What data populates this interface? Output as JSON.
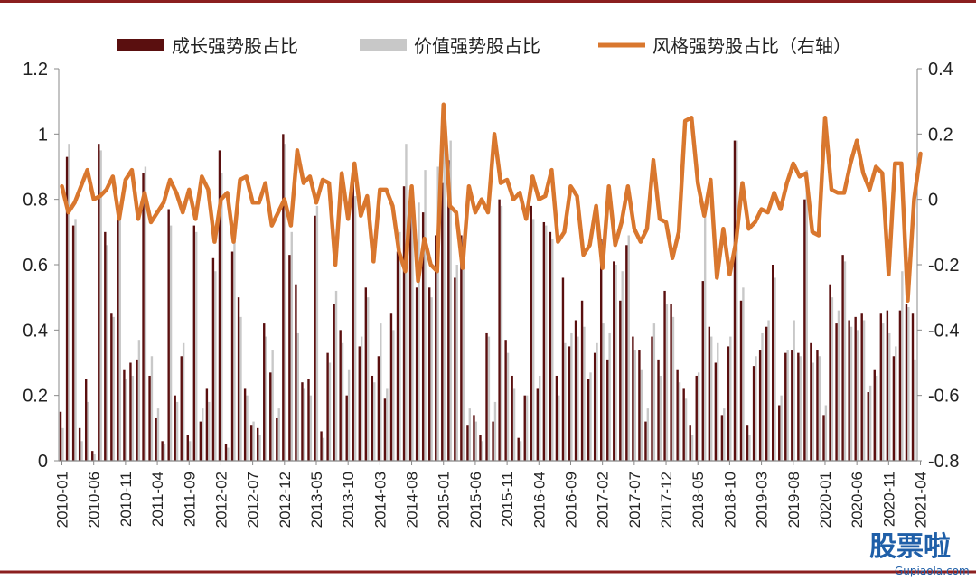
{
  "chart_data": {
    "type": "bar+line",
    "legend": {
      "growth": "成长强势股占比",
      "value": "价值强势股占比",
      "style": "风格强势股占比（右轴）"
    },
    "colors": {
      "growth": "#5a0f0f",
      "value": "#c8c8c8",
      "style": "#d9772e",
      "frame": "#8b1f1f"
    },
    "ylim_left": [
      0,
      1.2
    ],
    "ylim_right": [
      -0.8,
      0.4
    ],
    "yticks_left": [
      "0",
      "0.2",
      "0.4",
      "0.6",
      "0.8",
      "1",
      "1.2"
    ],
    "yticks_right": [
      "-0.8",
      "-0.6",
      "-0.4",
      "-0.2",
      "0",
      "0.2",
      "0.4"
    ],
    "xtick_labels": [
      "2010-01",
      "2010-06",
      "2010-11",
      "2011-04",
      "2011-09",
      "2012-02",
      "2012-07",
      "2012-12",
      "2013-05",
      "2013-10",
      "2014-03",
      "2014-08",
      "2015-01",
      "2015-06",
      "2015-11",
      "2016-04",
      "2016-09",
      "2017-02",
      "2017-07",
      "2017-12",
      "2018-05",
      "2018-10",
      "2019-03",
      "2019-08",
      "2020-01",
      "2020-06",
      "2020-11",
      "2021-04"
    ],
    "growth": [
      0.15,
      0.93,
      0.72,
      0.1,
      0.25,
      0.03,
      0.97,
      0.7,
      0.45,
      0.75,
      0.28,
      0.3,
      0.31,
      0.88,
      0.26,
      0.13,
      0.06,
      0.77,
      0.2,
      0.32,
      0.08,
      0.72,
      0.12,
      0.22,
      0.62,
      0.95,
      0.05,
      0.64,
      0.5,
      0.22,
      0.11,
      0.1,
      0.42,
      0.27,
      0.13,
      1.0,
      0.63,
      0.54,
      0.24,
      0.25,
      0.75,
      0.09,
      0.33,
      0.48,
      0.4,
      0.2,
      0.87,
      0.35,
      0.53,
      0.26,
      0.32,
      0.19,
      0.45,
      0.64,
      0.84,
      0.83,
      0.53,
      0.76,
      0.53,
      0.69,
      0.85,
      0.92,
      0.56,
      0.69,
      0.11,
      0.14,
      0.08,
      0.39,
      0.12,
      0.8,
      0.37,
      0.26,
      0.07,
      0.2,
      0.78,
      0.22,
      0.73,
      0.7,
      0.26,
      0.56,
      0.35,
      0.43,
      0.49,
      0.25,
      0.33,
      0.68,
      0.31,
      0.61,
      0.49,
      0.66,
      0.38,
      0.34,
      0.12,
      0.38,
      0.31,
      0.52,
      0.48,
      0.28,
      0.22,
      0.11,
      0.26,
      0.55,
      0.41,
      0.3,
      0.14,
      0.35,
      0.98,
      0.49,
      0.11,
      0.29,
      0.34,
      0.41,
      0.6,
      0.17,
      0.33,
      0.34,
      0.33,
      0.8,
      0.36,
      0.34,
      0.14,
      0.54,
      0.42,
      0.63,
      0.43,
      0.44,
      0.45,
      0.21,
      0.28,
      0.45,
      0.46,
      0.32,
      0.46,
      0.48,
      0.45
    ],
    "value": [
      0.1,
      0.97,
      0.74,
      0.06,
      0.18,
      0.02,
      0.95,
      0.66,
      0.44,
      0.77,
      0.25,
      0.26,
      0.37,
      0.9,
      0.32,
      0.16,
      0.05,
      0.72,
      0.18,
      0.36,
      0.06,
      0.7,
      0.16,
      0.18,
      0.58,
      0.88,
      0.04,
      0.68,
      0.44,
      0.2,
      0.12,
      0.08,
      0.38,
      0.34,
      0.16,
      0.97,
      0.7,
      0.39,
      0.22,
      0.2,
      0.78,
      0.07,
      0.3,
      0.52,
      0.36,
      0.28,
      0.81,
      0.38,
      0.5,
      0.24,
      0.42,
      0.22,
      0.4,
      0.7,
      0.97,
      0.76,
      0.79,
      0.89,
      0.5,
      0.9,
      0.98,
      0.98,
      0.6,
      0.62,
      0.16,
      0.12,
      0.06,
      0.38,
      0.18,
      0.78,
      0.33,
      0.22,
      0.06,
      0.2,
      0.74,
      0.26,
      0.72,
      0.68,
      0.2,
      0.36,
      0.39,
      0.38,
      0.41,
      0.27,
      0.36,
      0.42,
      0.39,
      0.6,
      0.58,
      0.69,
      0.34,
      0.28,
      0.16,
      0.42,
      0.26,
      0.48,
      0.44,
      0.24,
      0.19,
      0.08,
      0.27,
      0.78,
      0.38,
      0.36,
      0.16,
      0.38,
      0.98,
      0.53,
      0.08,
      0.32,
      0.39,
      0.43,
      0.56,
      0.2,
      0.34,
      0.43,
      0.32,
      0.89,
      0.3,
      0.32,
      0.17,
      0.5,
      0.46,
      0.61,
      0.41,
      0.4,
      0.43,
      0.23,
      0.26,
      0.42,
      0.39,
      0.35,
      0.58,
      0.47,
      0.31
    ],
    "style": [
      0.04,
      -0.04,
      -0.01,
      0.04,
      0.09,
      0.0,
      0.01,
      0.03,
      0.07,
      -0.06,
      0.06,
      0.09,
      -0.06,
      0.02,
      -0.07,
      -0.04,
      -0.01,
      0.06,
      0.02,
      -0.04,
      0.03,
      -0.06,
      0.07,
      0.03,
      -0.13,
      0.0,
      0.02,
      -0.13,
      0.06,
      0.07,
      -0.01,
      -0.01,
      0.05,
      -0.08,
      -0.04,
      0.0,
      -0.08,
      0.15,
      0.05,
      0.07,
      -0.01,
      0.06,
      0.05,
      -0.2,
      0.08,
      -0.06,
      0.11,
      -0.05,
      0.01,
      -0.19,
      0.03,
      0.03,
      -0.02,
      -0.16,
      -0.22,
      0.04,
      -0.25,
      -0.12,
      -0.2,
      -0.22,
      0.29,
      -0.02,
      -0.04,
      -0.21,
      0.04,
      -0.04,
      0.0,
      -0.04,
      0.2,
      0.05,
      0.06,
      0.0,
      0.02,
      -0.06,
      0.07,
      0.0,
      0.01,
      0.09,
      -0.13,
      -0.1,
      0.04,
      0.01,
      -0.17,
      -0.14,
      -0.02,
      -0.21,
      0.04,
      -0.14,
      -0.07,
      0.04,
      -0.09,
      -0.13,
      -0.09,
      0.12,
      -0.06,
      -0.07,
      -0.18,
      -0.1,
      0.24,
      0.25,
      0.05,
      -0.05,
      0.06,
      -0.24,
      -0.09,
      -0.23,
      -0.13,
      0.05,
      -0.09,
      -0.07,
      -0.03,
      -0.04,
      0.02,
      -0.03,
      0.05,
      0.11,
      0.07,
      0.08,
      -0.1,
      -0.11,
      0.25,
      0.03,
      0.02,
      0.02,
      0.11,
      0.18,
      0.08,
      0.03,
      0.1,
      0.08,
      -0.23,
      0.11,
      0.11,
      -0.31,
      0.0,
      0.14
    ]
  },
  "watermark": {
    "main": "股票啦",
    "url": "Gupiaola.com"
  }
}
